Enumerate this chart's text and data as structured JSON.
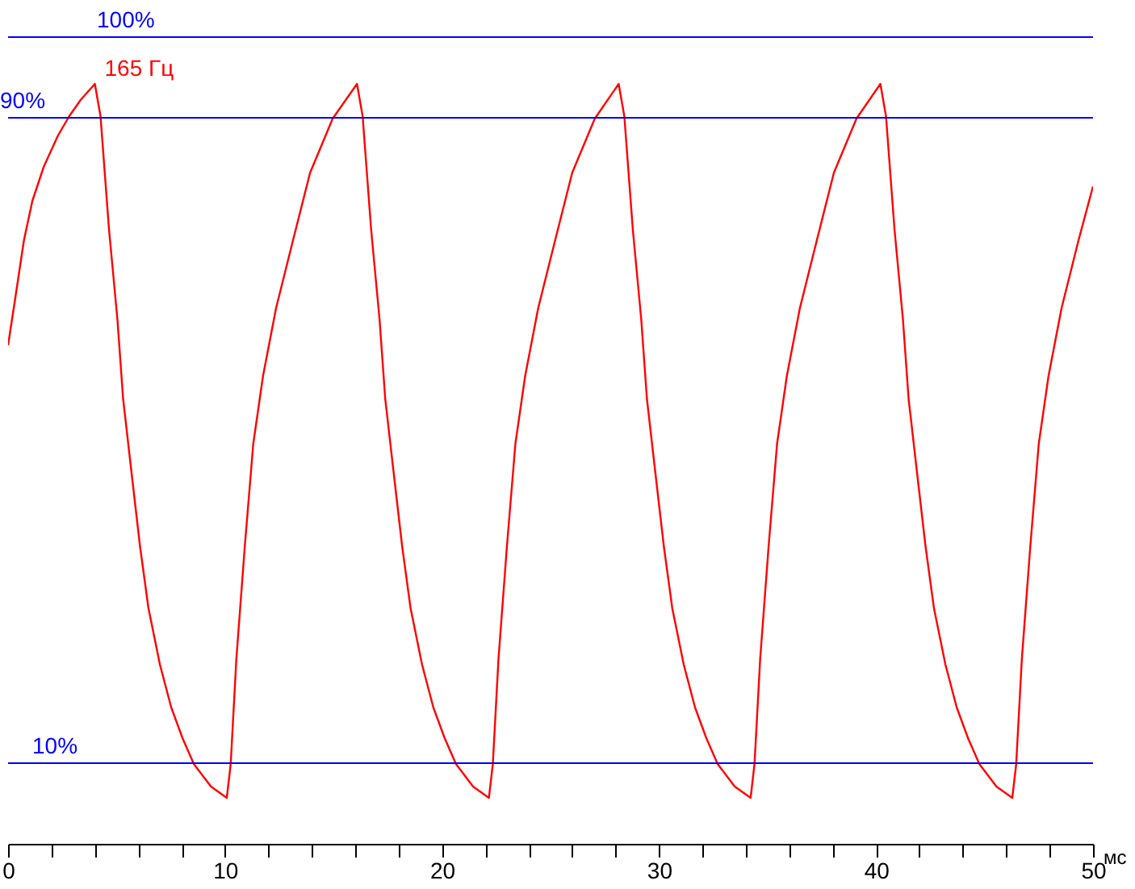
{
  "chart_data": {
    "type": "line",
    "xlabel": "мс",
    "xlim": [
      0,
      50
    ],
    "ylim": [
      0,
      104
    ],
    "xticks": [
      0,
      {
        "value": 2,
        "label": null
      },
      {
        "value": 4,
        "label": null
      },
      {
        "value": 6,
        "label": null
      },
      {
        "value": 8,
        "label": null
      },
      10,
      {
        "value": 12,
        "label": null
      },
      {
        "value": 14,
        "label": null
      },
      {
        "value": 16,
        "label": null
      },
      {
        "value": 18,
        "label": null
      },
      20,
      {
        "value": 22,
        "label": null
      },
      {
        "value": 24,
        "label": null
      },
      {
        "value": 26,
        "label": null
      },
      {
        "value": 28,
        "label": null
      },
      30,
      {
        "value": 32,
        "label": null
      },
      {
        "value": 34,
        "label": null
      },
      {
        "value": 36,
        "label": null
      },
      {
        "value": 38,
        "label": null
      },
      40,
      {
        "value": 42,
        "label": null
      },
      {
        "value": 44,
        "label": null
      },
      {
        "value": 46,
        "label": null
      },
      {
        "value": 48,
        "label": null
      },
      50
    ],
    "tick_labels": "x",
    "ref_lines": [
      {
        "axis": "y",
        "value": 100,
        "label": "100%",
        "color": "#0000ff"
      },
      {
        "axis": "y",
        "value": 90,
        "label": "90%",
        "color": "#0000ff"
      },
      {
        "axis": "y",
        "value": 10,
        "label": "10%",
        "color": "#0000ff"
      }
    ],
    "series": [
      {
        "name": "165 Гц",
        "color": "#ff0000",
        "x": [
          0,
          0.34,
          0.73,
          1.12,
          1.64,
          2.3,
          2.82,
          3.34,
          4.0,
          4.26,
          4.65,
          5.04,
          5.3,
          5.69,
          6.08,
          6.47,
          7.0,
          7.52,
          8.04,
          8.56,
          9.35,
          10.08,
          10.26,
          10.52,
          10.91,
          11.3,
          11.75,
          12.35,
          13.13,
          13.92,
          14.96,
          16.08,
          16.34,
          16.73,
          17.12,
          17.38,
          17.77,
          18.16,
          18.55,
          19.08,
          19.6,
          20.12,
          20.64,
          21.43,
          22.16,
          22.34,
          22.6,
          22.99,
          23.38,
          23.83,
          24.43,
          25.21,
          26.0,
          27.04,
          28.14,
          28.4,
          28.79,
          29.18,
          29.44,
          29.83,
          30.22,
          30.61,
          31.14,
          31.66,
          32.18,
          32.7,
          33.49,
          34.22,
          34.4,
          34.66,
          35.05,
          35.44,
          35.89,
          36.49,
          37.27,
          38.06,
          39.1,
          40.2,
          40.46,
          40.85,
          41.24,
          41.5,
          41.89,
          42.28,
          42.67,
          43.2,
          43.72,
          44.24,
          44.76,
          45.55,
          46.28,
          46.46,
          46.72,
          47.11,
          47.5,
          47.95,
          48.55,
          49.33,
          50
        ],
        "values": [
          61.8,
          67.8,
          74.8,
          79.7,
          83.9,
          87.8,
          90.2,
          92.2,
          94.2,
          90.2,
          76.2,
          65.0,
          55.2,
          46.0,
          36.9,
          29.2,
          22.2,
          16.9,
          13.1,
          9.9,
          7.1,
          5.7,
          9.9,
          22.9,
          36.9,
          49.6,
          58.0,
          66.4,
          74.8,
          83.2,
          89.9,
          94.2,
          90.2,
          76.2,
          65.0,
          55.2,
          46.0,
          36.9,
          29.2,
          22.2,
          16.9,
          13.1,
          9.9,
          7.1,
          5.7,
          9.9,
          22.9,
          36.9,
          49.6,
          58.0,
          66.4,
          74.8,
          83.2,
          89.9,
          94.2,
          90.2,
          76.2,
          65.0,
          55.2,
          46.0,
          36.9,
          29.2,
          22.2,
          16.9,
          13.1,
          9.9,
          7.1,
          5.7,
          9.9,
          22.9,
          36.9,
          49.6,
          58.0,
          66.4,
          74.8,
          83.2,
          89.9,
          94.2,
          90.2,
          76.2,
          65.0,
          55.2,
          46.0,
          36.9,
          29.2,
          22.2,
          16.9,
          13.1,
          9.9,
          7.1,
          5.7,
          9.9,
          22.9,
          36.9,
          49.6,
          58.0,
          66.4,
          74.8,
          81.5
        ]
      }
    ]
  }
}
